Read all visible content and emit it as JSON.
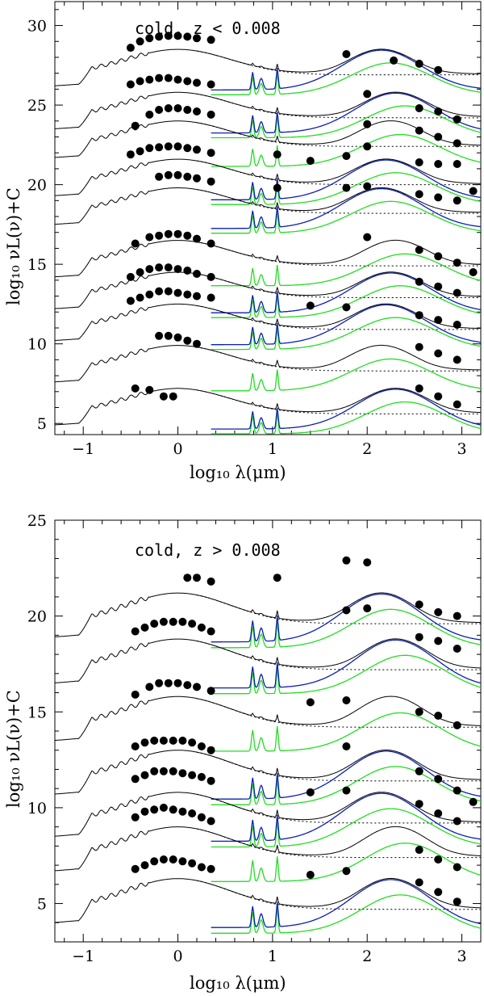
{
  "chart_data": [
    {
      "type": "line",
      "id": "top",
      "annotation": "cold, z < 0.008",
      "xlabel": "log₁₀ λ(μm)",
      "ylabel": "log₁₀ νL(ν)+C",
      "xlim": [
        -1.3,
        3.2
      ],
      "ylim": [
        4.3,
        31.5
      ],
      "xticks": [
        -1,
        0,
        1,
        2,
        3
      ],
      "yticks": [
        5,
        10,
        15,
        20,
        25,
        30
      ],
      "series_colors": {
        "total": "#000000",
        "starburst": "#0b1fb3",
        "component": "#22dd22",
        "alt": "#000000"
      },
      "offsets": [
        28.5,
        25.8,
        24.0,
        21.6,
        19.8,
        16.5,
        14.5,
        12.5,
        9.9,
        7.2
      ],
      "points": [
        [
          [
            -0.5,
            28.6
          ],
          [
            -0.4,
            29.0
          ],
          [
            -0.3,
            29.2
          ],
          [
            -0.2,
            29.3
          ],
          [
            -0.1,
            29.35
          ],
          [
            0.0,
            29.35
          ],
          [
            0.1,
            29.3
          ],
          [
            0.2,
            29.2
          ],
          [
            0.35,
            29.1
          ],
          [
            1.78,
            28.2
          ],
          [
            2.28,
            27.8
          ],
          [
            2.55,
            27.6
          ],
          [
            2.75,
            27.2
          ]
        ],
        [
          [
            -0.5,
            26.3
          ],
          [
            -0.4,
            26.5
          ],
          [
            -0.3,
            26.6
          ],
          [
            -0.2,
            26.7
          ],
          [
            -0.1,
            26.7
          ],
          [
            0.0,
            26.6
          ],
          [
            0.1,
            26.5
          ],
          [
            0.2,
            26.4
          ],
          [
            0.35,
            26.3
          ],
          [
            2.0,
            25.7
          ],
          [
            2.55,
            24.8
          ],
          [
            2.75,
            24.6
          ],
          [
            2.95,
            24.1
          ]
        ],
        [
          [
            -0.45,
            23.7
          ],
          [
            -0.3,
            24.4
          ],
          [
            -0.2,
            24.7
          ],
          [
            -0.1,
            24.8
          ],
          [
            0.0,
            24.8
          ],
          [
            0.1,
            24.7
          ],
          [
            0.2,
            24.6
          ],
          [
            0.35,
            24.4
          ],
          [
            2.0,
            23.8
          ],
          [
            2.55,
            23.4
          ],
          [
            2.75,
            23.0
          ],
          [
            2.95,
            22.6
          ]
        ],
        [
          [
            -0.5,
            21.9
          ],
          [
            -0.4,
            22.1
          ],
          [
            -0.3,
            22.3
          ],
          [
            -0.2,
            22.35
          ],
          [
            -0.1,
            22.4
          ],
          [
            0.0,
            22.4
          ],
          [
            0.1,
            22.3
          ],
          [
            0.2,
            22.2
          ],
          [
            0.35,
            22.0
          ],
          [
            1.05,
            21.9
          ],
          [
            1.4,
            21.5
          ],
          [
            1.78,
            21.8
          ],
          [
            2.0,
            22.4
          ],
          [
            2.55,
            21.4
          ],
          [
            2.75,
            21.3
          ],
          [
            2.95,
            21.3
          ]
        ],
        [
          [
            -0.2,
            20.5
          ],
          [
            -0.1,
            20.6
          ],
          [
            0.0,
            20.6
          ],
          [
            0.1,
            20.5
          ],
          [
            0.2,
            20.4
          ],
          [
            0.35,
            20.2
          ],
          [
            1.05,
            19.8
          ],
          [
            1.78,
            19.8
          ],
          [
            2.0,
            19.9
          ],
          [
            2.55,
            19.4
          ],
          [
            2.75,
            19.2
          ],
          [
            2.95,
            19.0
          ],
          [
            3.12,
            19.6
          ]
        ],
        [
          [
            -0.45,
            16.3
          ],
          [
            -0.3,
            16.7
          ],
          [
            -0.2,
            16.8
          ],
          [
            -0.1,
            16.9
          ],
          [
            0.0,
            16.9
          ],
          [
            0.1,
            16.8
          ],
          [
            0.2,
            16.6
          ],
          [
            0.35,
            16.3
          ],
          [
            2.0,
            16.7
          ],
          [
            2.55,
            15.9
          ],
          [
            2.75,
            15.5
          ],
          [
            2.95,
            15.1
          ],
          [
            3.12,
            14.5
          ]
        ],
        [
          [
            -0.5,
            14.2
          ],
          [
            -0.4,
            14.5
          ],
          [
            -0.3,
            14.7
          ],
          [
            -0.2,
            14.8
          ],
          [
            -0.1,
            14.8
          ],
          [
            0.0,
            14.7
          ],
          [
            0.1,
            14.6
          ],
          [
            0.2,
            14.4
          ],
          [
            0.35,
            14.2
          ],
          [
            2.55,
            13.9
          ],
          [
            2.75,
            13.6
          ],
          [
            2.95,
            13.2
          ]
        ],
        [
          [
            -0.5,
            12.7
          ],
          [
            -0.4,
            12.9
          ],
          [
            -0.3,
            13.1
          ],
          [
            -0.2,
            13.3
          ],
          [
            -0.1,
            13.3
          ],
          [
            0.0,
            13.2
          ],
          [
            0.1,
            13.1
          ],
          [
            0.2,
            13.0
          ],
          [
            0.35,
            12.9
          ],
          [
            1.4,
            12.4
          ],
          [
            1.78,
            12.3
          ],
          [
            2.55,
            11.8
          ],
          [
            2.75,
            11.5
          ],
          [
            2.95,
            11.2
          ]
        ],
        [
          [
            -0.2,
            10.5
          ],
          [
            -0.1,
            10.5
          ],
          [
            0.0,
            10.4
          ],
          [
            0.1,
            10.2
          ],
          [
            0.2,
            10.0
          ],
          [
            2.55,
            9.8
          ],
          [
            2.75,
            9.4
          ],
          [
            2.95,
            9.0
          ]
        ],
        [
          [
            -0.45,
            7.2
          ],
          [
            -0.3,
            7.1
          ],
          [
            -0.15,
            6.7
          ],
          [
            -0.05,
            6.7
          ],
          [
            2.55,
            7.2
          ],
          [
            2.75,
            6.7
          ],
          [
            2.95,
            6.2
          ]
        ]
      ]
    },
    {
      "type": "line",
      "id": "bottom",
      "annotation": "cold, z > 0.008",
      "xlabel": "log₁₀ λ(μm)",
      "ylabel": "log₁₀ νL(ν)+C",
      "xlim": [
        -1.3,
        3.2
      ],
      "ylim": [
        3.0,
        25.0
      ],
      "xticks": [
        -1,
        0,
        1,
        2,
        3
      ],
      "yticks": [
        5,
        10,
        15,
        20,
        25
      ],
      "series_colors": {
        "total": "#000000",
        "starburst": "#0b1fb3",
        "component": "#22dd22",
        "alt": "#000000"
      },
      "offsets": [
        21.2,
        18.8,
        15.8,
        13.0,
        10.8,
        9.0,
        6.3
      ],
      "points": [
        [
          [
            0.1,
            22.0
          ],
          [
            0.2,
            22.0
          ],
          [
            0.35,
            21.8
          ],
          [
            1.05,
            22.0
          ],
          [
            1.78,
            22.9
          ],
          [
            2.0,
            22.8
          ],
          [
            2.55,
            20.6
          ],
          [
            2.75,
            20.2
          ],
          [
            2.95,
            20.0
          ]
        ],
        [
          [
            -0.45,
            19.2
          ],
          [
            -0.35,
            19.4
          ],
          [
            -0.25,
            19.6
          ],
          [
            -0.15,
            19.7
          ],
          [
            -0.05,
            19.7
          ],
          [
            0.05,
            19.7
          ],
          [
            0.15,
            19.6
          ],
          [
            0.25,
            19.4
          ],
          [
            0.35,
            19.2
          ],
          [
            1.78,
            20.3
          ],
          [
            2.0,
            20.4
          ],
          [
            2.55,
            18.9
          ],
          [
            2.75,
            18.7
          ],
          [
            2.95,
            18.3
          ]
        ],
        [
          [
            -0.45,
            15.9
          ],
          [
            -0.3,
            16.3
          ],
          [
            -0.2,
            16.5
          ],
          [
            -0.1,
            16.5
          ],
          [
            0.0,
            16.5
          ],
          [
            0.1,
            16.4
          ],
          [
            0.2,
            16.3
          ],
          [
            0.35,
            16.1
          ],
          [
            1.4,
            15.5
          ],
          [
            1.78,
            15.6
          ],
          [
            2.55,
            15.0
          ],
          [
            2.75,
            14.8
          ],
          [
            2.95,
            14.3
          ]
        ],
        [
          [
            -0.45,
            13.2
          ],
          [
            -0.35,
            13.4
          ],
          [
            -0.25,
            13.5
          ],
          [
            -0.15,
            13.5
          ],
          [
            -0.05,
            13.5
          ],
          [
            0.05,
            13.5
          ],
          [
            0.15,
            13.4
          ],
          [
            0.25,
            13.2
          ],
          [
            0.35,
            13.0
          ],
          [
            1.78,
            13.2
          ],
          [
            2.55,
            11.9
          ],
          [
            2.75,
            11.5
          ],
          [
            2.95,
            10.9
          ],
          [
            3.12,
            10.3
          ]
        ],
        [
          [
            -0.45,
            11.5
          ],
          [
            -0.35,
            11.7
          ],
          [
            -0.25,
            11.9
          ],
          [
            -0.15,
            11.9
          ],
          [
            -0.05,
            11.9
          ],
          [
            0.05,
            11.8
          ],
          [
            0.15,
            11.7
          ],
          [
            0.25,
            11.6
          ],
          [
            0.35,
            11.4
          ],
          [
            1.4,
            10.8
          ],
          [
            1.78,
            10.9
          ],
          [
            2.55,
            10.2
          ],
          [
            2.75,
            9.7
          ],
          [
            2.95,
            9.3
          ]
        ],
        [
          [
            -0.45,
            9.5
          ],
          [
            -0.35,
            9.8
          ],
          [
            -0.25,
            9.9
          ],
          [
            -0.15,
            10.0
          ],
          [
            -0.05,
            9.9
          ],
          [
            0.05,
            9.8
          ],
          [
            0.15,
            9.7
          ],
          [
            0.25,
            9.5
          ],
          [
            0.35,
            9.3
          ],
          [
            2.55,
            7.8
          ],
          [
            2.75,
            7.3
          ],
          [
            2.95,
            6.9
          ]
        ],
        [
          [
            -0.45,
            6.8
          ],
          [
            -0.35,
            7.0
          ],
          [
            -0.25,
            7.2
          ],
          [
            -0.15,
            7.3
          ],
          [
            -0.05,
            7.3
          ],
          [
            0.05,
            7.2
          ],
          [
            0.15,
            7.1
          ],
          [
            0.25,
            6.9
          ],
          [
            0.35,
            6.8
          ],
          [
            1.4,
            6.5
          ],
          [
            1.78,
            6.7
          ],
          [
            2.55,
            6.1
          ],
          [
            2.75,
            5.6
          ],
          [
            2.95,
            5.1
          ]
        ]
      ]
    }
  ]
}
